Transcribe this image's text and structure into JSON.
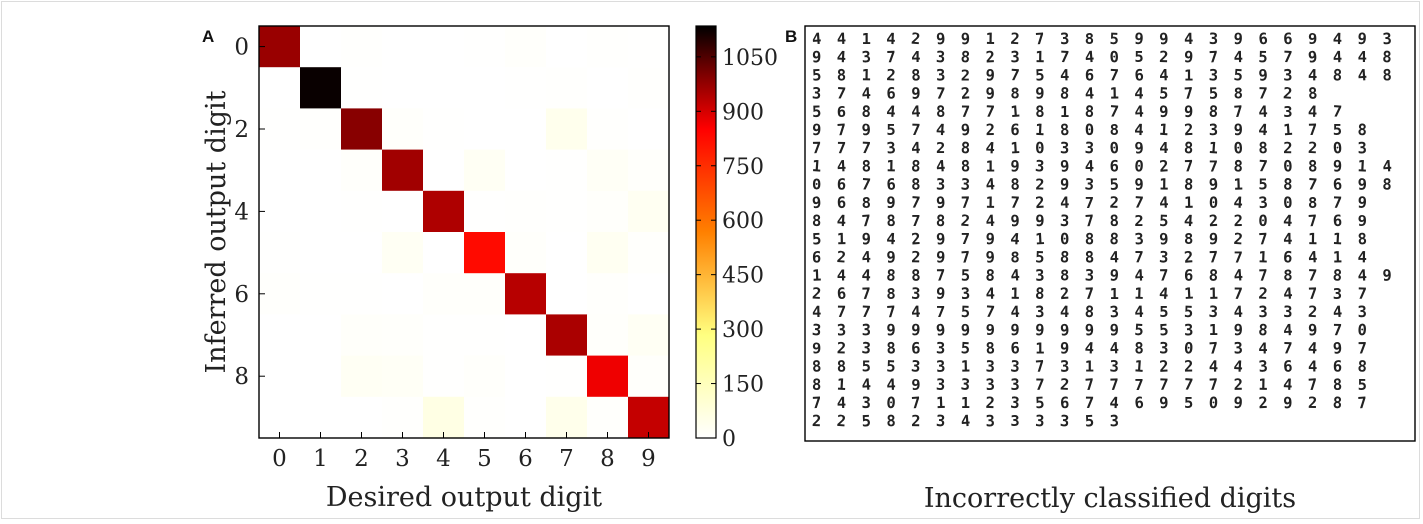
{
  "panels": {
    "a_label": "A",
    "b_label": "B",
    "b_caption": "Incorrectly classified digits"
  },
  "chart_data": {
    "type": "heatmap",
    "xlabel": "Desired output digit",
    "ylabel": "Inferred output digit",
    "x_ticks": [
      "0",
      "1",
      "2",
      "3",
      "4",
      "5",
      "6",
      "7",
      "8",
      "9"
    ],
    "y_ticks": [
      "0",
      "2",
      "4",
      "6",
      "8"
    ],
    "colorbar": {
      "min": 0,
      "max": 1135,
      "ticks": [
        0,
        150,
        300,
        450,
        600,
        750,
        900,
        1050
      ],
      "colormap": "afmhot_r"
    },
    "grid": false,
    "rows": [
      "0",
      "1",
      "2",
      "3",
      "4",
      "5",
      "6",
      "7",
      "8",
      "9"
    ],
    "cols": [
      "0",
      "1",
      "2",
      "3",
      "4",
      "5",
      "6",
      "7",
      "8",
      "9"
    ],
    "matrix": [
      [
        970,
        0,
        4,
        0,
        0,
        2,
        8,
        0,
        4,
        3
      ],
      [
        0,
        1125,
        3,
        0,
        0,
        0,
        3,
        5,
        1,
        4
      ],
      [
        2,
        4,
        990,
        10,
        2,
        0,
        0,
        40,
        5,
        1
      ],
      [
        0,
        0,
        8,
        960,
        0,
        25,
        0,
        3,
        20,
        8
      ],
      [
        0,
        0,
        2,
        0,
        945,
        3,
        4,
        2,
        8,
        30
      ],
      [
        2,
        1,
        0,
        25,
        0,
        830,
        10,
        0,
        28,
        6
      ],
      [
        6,
        3,
        2,
        0,
        8,
        8,
        935,
        0,
        6,
        1
      ],
      [
        1,
        1,
        12,
        8,
        3,
        2,
        0,
        950,
        8,
        25
      ],
      [
        0,
        1,
        24,
        20,
        2,
        8,
        1,
        2,
        870,
        8
      ],
      [
        0,
        0,
        1,
        5,
        60,
        4,
        0,
        45,
        6,
        920
      ]
    ]
  },
  "misclassified": {
    "rows": [
      "441429912738599439669493",
      "943743823174052974579448",
      "581283297546764135934848",
      "374697298984145758728",
      "5684487718187499874347",
      "97957492618084123941758",
      "77734284103309481082203",
      "148184819394602778708914",
      "067683348293591891587698",
      "96897971724727410430879",
      "84787824993782542204769",
      "51942979410883989274118",
      "62492979858847327716414",
      "144887584383947684787849",
      "26783934182711411724737",
      "47774757434834553433243",
      "33399999999995531984970",
      "92386358619448307347497",
      "88553313373131224436468",
      "81449333372777777214785",
      "74307112356746950929287",
      "2258234333353"
    ]
  }
}
